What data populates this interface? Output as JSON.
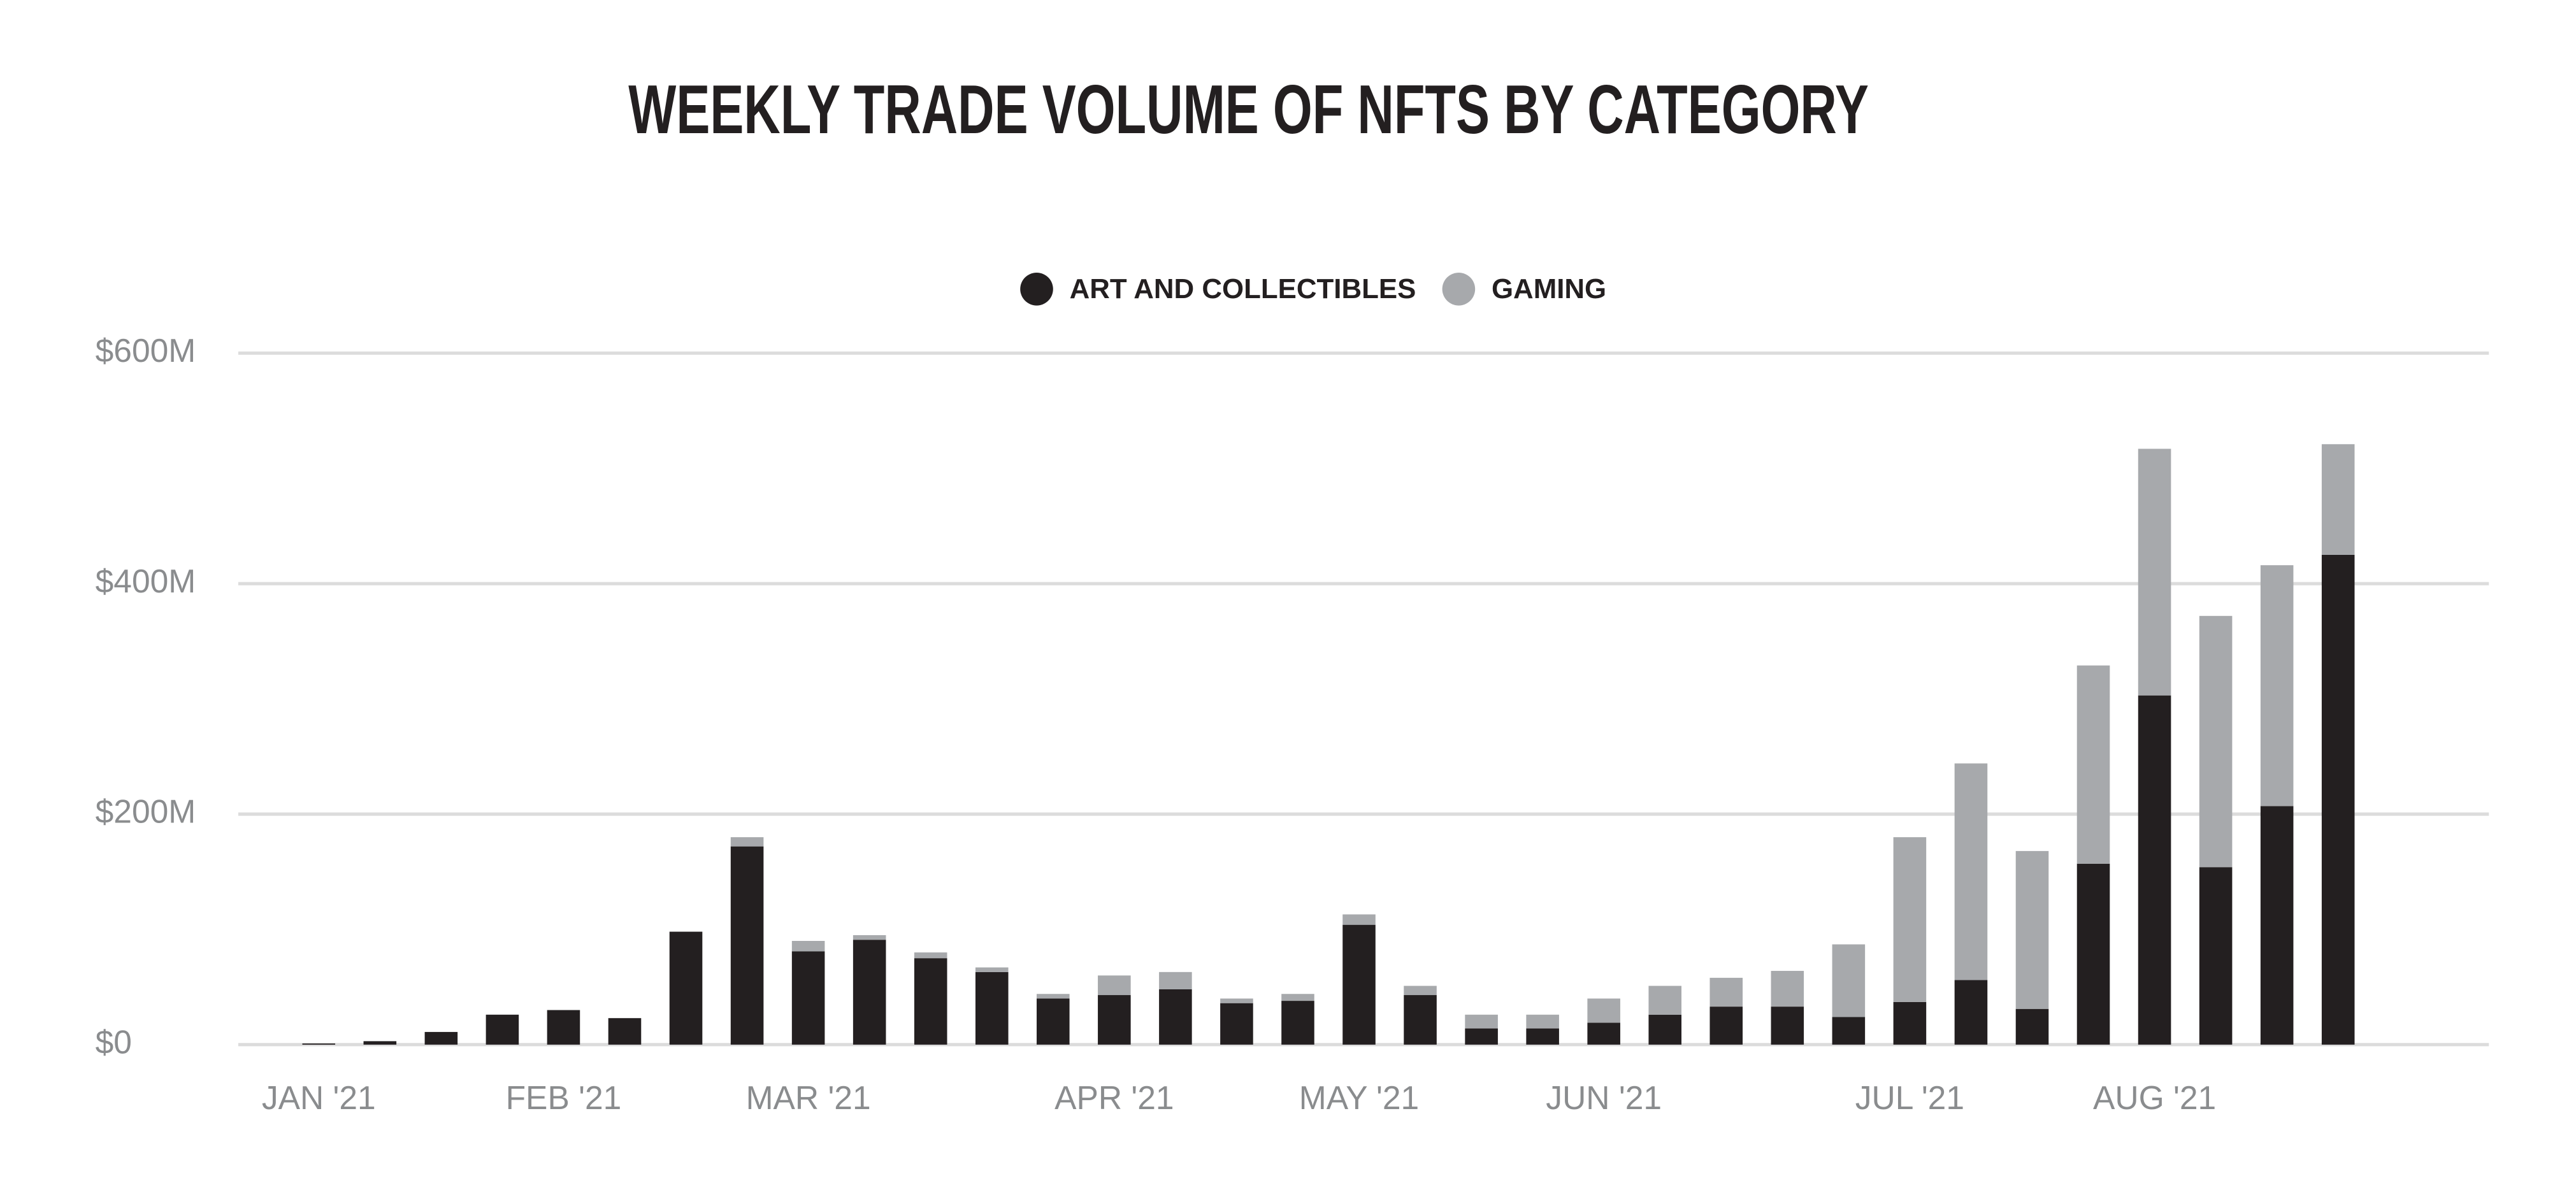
{
  "chart_data": {
    "type": "stacked_bar",
    "title": "WEEKLY TRADE VOLUME OF NFTS BY CATEGORY",
    "categories": [
      "JAN '21",
      null,
      null,
      null,
      "FEB '21",
      null,
      null,
      null,
      "MAR '21",
      null,
      null,
      null,
      null,
      "APR '21",
      null,
      null,
      null,
      "MAY '21",
      null,
      null,
      null,
      "JUN '21",
      null,
      null,
      null,
      null,
      "JUL '21",
      null,
      null,
      null,
      "AUG '21",
      null,
      null,
      null
    ],
    "series": [
      {
        "name": "ART AND COLLECTIBLES",
        "color": "#231f20",
        "values": [
          1,
          3,
          11,
          26,
          30,
          23,
          98,
          172,
          81,
          91,
          75,
          63,
          40,
          43,
          48,
          36,
          38,
          104,
          43,
          14,
          14,
          19,
          26,
          33,
          33,
          24,
          37,
          56,
          31,
          157,
          303,
          154,
          207,
          425
        ]
      },
      {
        "name": "GAMING",
        "color": "#a7a9ac",
        "values": [
          0,
          0,
          0,
          0,
          0,
          0,
          0,
          8,
          9,
          4,
          5,
          4,
          4,
          17,
          15,
          4,
          6,
          9,
          8,
          12,
          12,
          21,
          25,
          25,
          31,
          63,
          143,
          188,
          137,
          172,
          214,
          218,
          209,
          96
        ]
      }
    ],
    "ylim": [
      0,
      600
    ],
    "yticks": [
      {
        "value": 0,
        "label": "$0"
      },
      {
        "value": 200,
        "label": "$200M"
      },
      {
        "value": 400,
        "label": "$400M"
      },
      {
        "value": 600,
        "label": "$600M"
      }
    ],
    "grid": true,
    "legend": "top"
  }
}
